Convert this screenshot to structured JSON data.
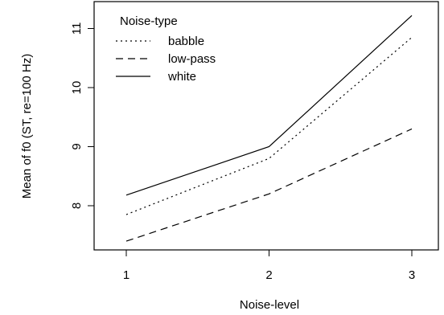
{
  "chart_data": {
    "type": "line",
    "xlabel": "Noise-level",
    "ylabel": "Mean of f0 (ST, re=100 Hz)",
    "x": [
      1,
      2,
      3
    ],
    "x_tick_labels": [
      "1",
      "2",
      "3"
    ],
    "y_ticks": [
      8,
      9,
      10,
      11
    ],
    "y_tick_labels": [
      "8",
      "9",
      "10",
      "11"
    ],
    "xlim": [
      0.8,
      3.2
    ],
    "ylim": [
      7.3,
      11.25
    ],
    "grid": false,
    "legend": {
      "title": "Noise-type",
      "placement": "top-left",
      "entries": [
        "babble",
        "low-pass",
        "white"
      ]
    },
    "series": [
      {
        "name": "babble",
        "line_style": "dotted",
        "values": [
          7.85,
          8.8,
          10.85
        ]
      },
      {
        "name": "low-pass",
        "line_style": "dashed",
        "values": [
          7.4,
          8.2,
          9.3
        ]
      },
      {
        "name": "white",
        "line_style": "solid",
        "values": [
          8.18,
          9.0,
          11.22
        ]
      }
    ]
  }
}
